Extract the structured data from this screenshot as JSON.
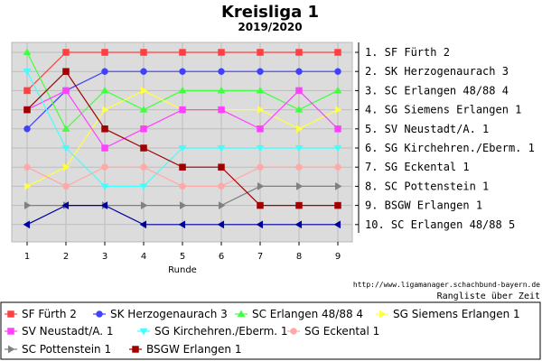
{
  "chart_data": {
    "type": "line",
    "title": "Kreisliga 1",
    "subtitle": "2019/2020",
    "xlabel": "Runde",
    "x": [
      1,
      2,
      3,
      4,
      5,
      6,
      7,
      8,
      9
    ],
    "ylim": [
      1,
      10
    ],
    "y_inverted": true,
    "grid": true,
    "legend_position": "bottom",
    "rank_labels": [
      "1. SF Fürth 2",
      "2. SK Herzogenaurach 3",
      "3. SC Erlangen 48/88 4",
      "4. SG Siemens Erlangen 1",
      "5. SV Neustadt/A. 1",
      "6. SG Kirchehren./Eberm. 1",
      "7. SG Eckental 1",
      "8. SC Pottenstein 1",
      "9. BSGW Erlangen 1",
      "10. SC Erlangen 48/88 5"
    ],
    "url_note": "http://www.ligamanager.schachbund-bayern.de",
    "caption": "Rangliste über Zeit",
    "series": [
      {
        "name": "SF Fürth 2",
        "color": "#ff4040",
        "marker": "square",
        "values": [
          3,
          1,
          1,
          1,
          1,
          1,
          1,
          1,
          1
        ]
      },
      {
        "name": "SK Herzogenaurach 3",
        "color": "#4040ff",
        "marker": "circle",
        "values": [
          5,
          3,
          2,
          2,
          2,
          2,
          2,
          2,
          2
        ]
      },
      {
        "name": "SC Erlangen 48/88 4",
        "color": "#40ff40",
        "marker": "triangle-up",
        "values": [
          1,
          5,
          3,
          4,
          3,
          3,
          3,
          4,
          3
        ]
      },
      {
        "name": "SG Siemens Erlangen 1",
        "color": "#ffff40",
        "marker": "triangle-right",
        "values": [
          8,
          7,
          4,
          3,
          4,
          4,
          4,
          5,
          4
        ]
      },
      {
        "name": "SV Neustadt/A. 1",
        "color": "#ff40ff",
        "marker": "square",
        "values": [
          4,
          3,
          6,
          5,
          4,
          4,
          5,
          3,
          5
        ]
      },
      {
        "name": "SG Kirchehren./Eberm. 1",
        "color": "#40ffff",
        "marker": "triangle-down",
        "values": [
          2,
          6,
          8,
          8,
          6,
          6,
          6,
          6,
          6
        ]
      },
      {
        "name": "SG Eckental 1",
        "color": "#ffa8a8",
        "marker": "circle",
        "values": [
          7,
          8,
          7,
          7,
          8,
          8,
          7,
          7,
          7
        ]
      },
      {
        "name": "SC Pottenstein 1",
        "color": "#808080",
        "marker": "triangle-right",
        "values": [
          9,
          9,
          9,
          9,
          9,
          9,
          8,
          8,
          8
        ]
      },
      {
        "name": "BSGW Erlangen 1",
        "color": "#a00000",
        "marker": "square",
        "values": [
          4,
          2,
          5,
          6,
          7,
          7,
          9,
          9,
          9
        ]
      },
      {
        "name": "SC Erlangen 48/88 5",
        "color": "#0000a0",
        "marker": "triangle-left",
        "values": [
          10,
          9,
          9,
          10,
          10,
          10,
          10,
          10,
          10
        ]
      }
    ]
  }
}
